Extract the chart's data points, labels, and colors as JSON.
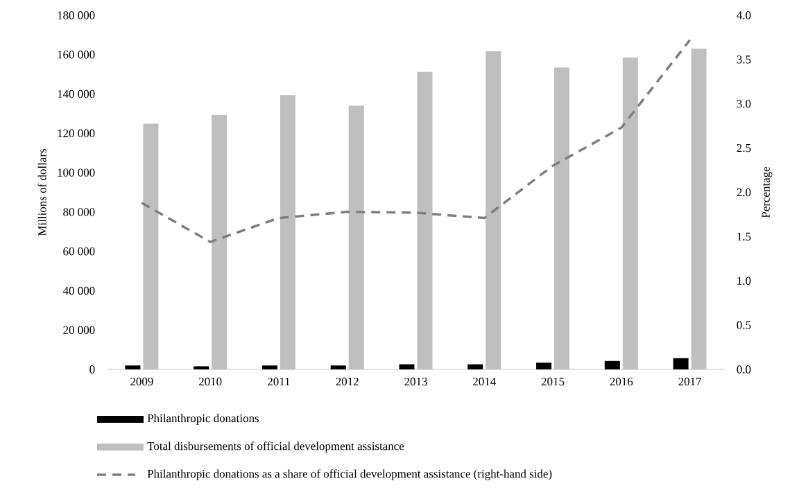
{
  "chart_data": {
    "type": "bar",
    "categories": [
      "2009",
      "2010",
      "2011",
      "2012",
      "2013",
      "2014",
      "2015",
      "2016",
      "2017"
    ],
    "ylabel": "Millions of dollars",
    "y2label": "Percentage",
    "ylim": [
      0,
      180000
    ],
    "yticks": [
      0,
      {
        "value": 20000,
        "label": "20 000"
      },
      {
        "value": 40000,
        "label": "40 000"
      },
      {
        "value": 60000,
        "label": "60 000"
      },
      {
        "value": 80000,
        "label": "80 000"
      },
      {
        "value": 100000,
        "label": "100 000"
      },
      {
        "value": 120000,
        "label": "120 000"
      },
      {
        "value": 140000,
        "label": "140 000"
      },
      {
        "value": 160000,
        "label": "160 000"
      },
      {
        "value": 180000,
        "label": "180 000"
      }
    ],
    "y2lim": [
      0,
      4
    ],
    "y2ticks": [
      {
        "value": 0,
        "label": "0.0"
      },
      0.5,
      {
        "value": 1,
        "label": "1.0"
      },
      1.5,
      {
        "value": 2,
        "label": "2.0"
      },
      2.5,
      {
        "value": 3,
        "label": "3.0"
      },
      3.5,
      {
        "value": 4,
        "label": "4.0"
      }
    ],
    "legend": "bottom",
    "series": [
      {
        "name": "Philanthropic donations",
        "color": "#000000",
        "values": [
          2000,
          1600,
          2000,
          2000,
          2600,
          2600,
          3400,
          4300,
          5700
        ]
      },
      {
        "name": "Total disbursements of official development assistance",
        "color": "#bfbfbf",
        "values": [
          124900,
          129400,
          139400,
          134000,
          151200,
          161700,
          153400,
          158500,
          163000
        ]
      },
      {
        "name": "Philanthropic donations as a share of official development assistance (right-hand side)",
        "type": "line",
        "axis": "y2",
        "color": "#7f7f7f",
        "line_style": "dashed",
        "values": [
          1.88,
          1.44,
          1.71,
          1.78,
          1.77,
          1.71,
          2.3,
          2.73,
          3.72
        ]
      }
    ]
  }
}
